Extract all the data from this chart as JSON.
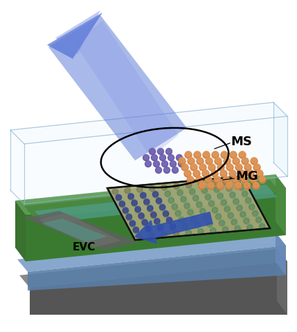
{
  "figsize": [
    4.29,
    4.8
  ],
  "dpi": 100,
  "bg_color": "#ffffff",
  "gray_base_top": "#888888",
  "gray_base_front": "#555555",
  "gray_base_right": "#666666",
  "blue_layer_top": "#7a9ec8",
  "blue_layer_side": "#5a7ea8",
  "green_top": "#5a9a50",
  "green_side": "#3a7a30",
  "green_right": "#4a8a40",
  "green_dark_inner": "#3a6a30",
  "teal_inner": "#50a090",
  "glass_fill": "#d0e8f8",
  "glass_alpha": 0.35,
  "glass_edge": "#90b8d8",
  "beam_color": "#5575d5",
  "beam_alpha": 0.65,
  "small_arrow_color": "#3050b0",
  "pillar_orange": "#d08040",
  "pillar_purple": "#6050a0",
  "mg_bg": "#b8b870",
  "mg_dot_green": "#70a870",
  "mg_dot_blue": "#4050a0",
  "mg_dot_teal": "#507890",
  "waveguide_gray": "#606060",
  "ms_label": "MS",
  "mg_label": "MG",
  "evc_label": "EVC"
}
